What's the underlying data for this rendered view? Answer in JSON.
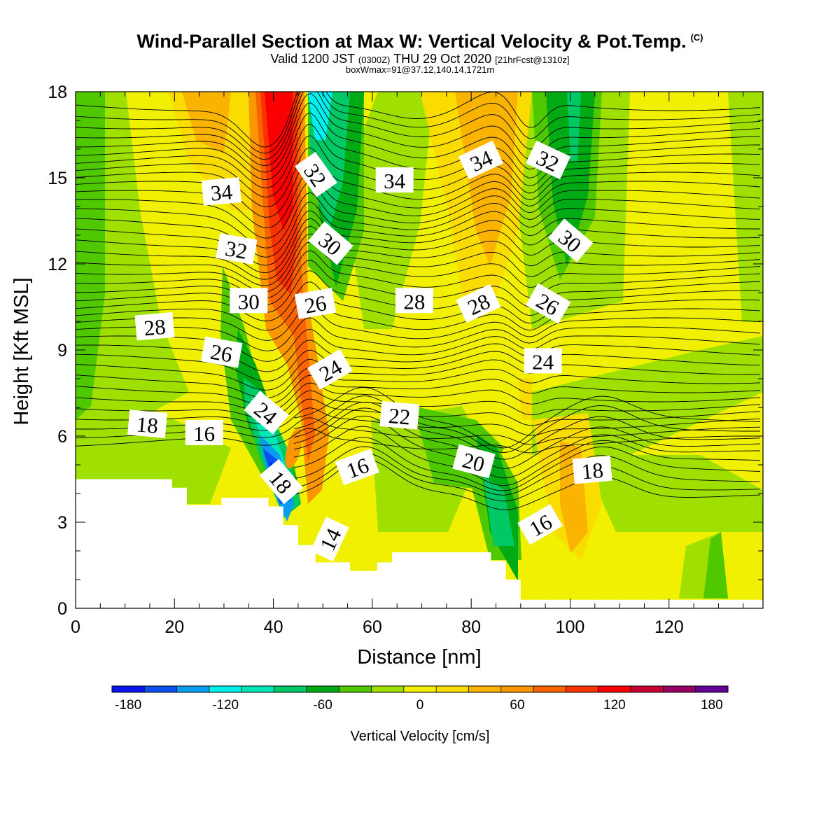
{
  "titles": {
    "main": "Wind-Parallel Section at Max W: Vertical Velocity & Pot.Temp.",
    "copyright": "(C)",
    "valid_a": "Valid 1200 JST",
    "valid_b": "(0300Z)",
    "valid_c": "THU 29 Oct 2020",
    "valid_d": "[21hrFcst@1310z]",
    "box": "boxWmax=91@37.12,140.14,1721m"
  },
  "colorbar": {
    "label": "Vertical Velocity [cm/s]",
    "ticks": [
      "-180",
      "-120",
      "-60",
      "0",
      "60",
      "120",
      "180"
    ],
    "colors": [
      "#0a14f0",
      "#0a50f0",
      "#0a9cf0",
      "#00f0f0",
      "#00e6b4",
      "#00c864",
      "#00aa14",
      "#50c800",
      "#a0e000",
      "#f0f000",
      "#fadc00",
      "#fab400",
      "#fa9600",
      "#fa6400",
      "#fa3200",
      "#fa0000",
      "#c80032",
      "#960064",
      "#640096"
    ]
  },
  "chart_data": {
    "type": "contour",
    "title": "Wind-Parallel Section at Max W: Vertical Velocity & Pot.Temp.",
    "xlabel": "Distance [nm]",
    "ylabel": "Height [Kft MSL]",
    "xlim": [
      0,
      139
    ],
    "ylim": [
      0,
      18
    ],
    "x_ticks": [
      "0",
      "20",
      "40",
      "60",
      "80",
      "100",
      "120"
    ],
    "y_ticks": [
      "0",
      "3",
      "6",
      "9",
      "12",
      "15",
      "18"
    ],
    "fill_variable": "Vertical Velocity [cm/s]",
    "contour_variable": "Potential temperature",
    "contour_labels": [
      {
        "text": "34",
        "x": 29.5,
        "y": 14.5,
        "rot": -5
      },
      {
        "text": "32",
        "x": 32.5,
        "y": 12.5,
        "rot": 10
      },
      {
        "text": "30",
        "x": 35,
        "y": 10.7,
        "rot": 0
      },
      {
        "text": "28",
        "x": 16,
        "y": 9.8,
        "rot": -5
      },
      {
        "text": "26",
        "x": 29.5,
        "y": 8.9,
        "rot": 10
      },
      {
        "text": "18",
        "x": 14.5,
        "y": 6.4,
        "rot": 5
      },
      {
        "text": "16",
        "x": 26,
        "y": 6.1,
        "rot": 0
      },
      {
        "text": "24",
        "x": 38.5,
        "y": 6.8,
        "rot": 40
      },
      {
        "text": "18",
        "x": 41.5,
        "y": 4.4,
        "rot": 50
      },
      {
        "text": "32",
        "x": 48.5,
        "y": 15.1,
        "rot": 55
      },
      {
        "text": "30",
        "x": 51.5,
        "y": 12.7,
        "rot": 40
      },
      {
        "text": "26",
        "x": 48.5,
        "y": 10.6,
        "rot": -10
      },
      {
        "text": "24",
        "x": 51.5,
        "y": 8.3,
        "rot": -30
      },
      {
        "text": "16",
        "x": 57,
        "y": 4.9,
        "rot": -20
      },
      {
        "text": "14",
        "x": 51.5,
        "y": 2.4,
        "rot": -65
      },
      {
        "text": "34",
        "x": 64.5,
        "y": 14.9,
        "rot": 0
      },
      {
        "text": "28",
        "x": 68.5,
        "y": 10.7,
        "rot": 0
      },
      {
        "text": "22",
        "x": 65.5,
        "y": 6.7,
        "rot": 5
      },
      {
        "text": "34",
        "x": 82,
        "y": 15.6,
        "rot": -25
      },
      {
        "text": "28",
        "x": 81.5,
        "y": 10.6,
        "rot": -25
      },
      {
        "text": "20",
        "x": 80.5,
        "y": 5.1,
        "rot": 15
      },
      {
        "text": "32",
        "x": 95.5,
        "y": 15.6,
        "rot": 25
      },
      {
        "text": "30",
        "x": 100,
        "y": 12.8,
        "rot": 40
      },
      {
        "text": "26",
        "x": 95.5,
        "y": 10.6,
        "rot": 30
      },
      {
        "text": "24",
        "x": 94.5,
        "y": 8.6,
        "rot": 0
      },
      {
        "text": "16",
        "x": 94,
        "y": 2.9,
        "rot": -30
      },
      {
        "text": "18",
        "x": 104.5,
        "y": 4.8,
        "rot": -5
      }
    ],
    "terrain_kft": [
      [
        0,
        4.5
      ],
      [
        19.5,
        4.5
      ],
      [
        19.5,
        4.2
      ],
      [
        22.5,
        4.2
      ],
      [
        22.5,
        3.6
      ],
      [
        29.5,
        3.6
      ],
      [
        29.5,
        3.85
      ],
      [
        39,
        3.85
      ],
      [
        39,
        3.55
      ],
      [
        42,
        3.55
      ],
      [
        42,
        2.9
      ],
      [
        45,
        2.9
      ],
      [
        45,
        2.2
      ],
      [
        48.5,
        2.2
      ],
      [
        48.5,
        1.6
      ],
      [
        55.5,
        1.6
      ],
      [
        55.5,
        1.3
      ],
      [
        61,
        1.3
      ],
      [
        61,
        1.6
      ],
      [
        64,
        1.6
      ],
      [
        64,
        1.95
      ],
      [
        84,
        1.95
      ],
      [
        84,
        1.65
      ],
      [
        87,
        1.65
      ],
      [
        87,
        1.0
      ],
      [
        90,
        1.0
      ],
      [
        90,
        0.3
      ],
      [
        139,
        0.3
      ]
    ]
  }
}
